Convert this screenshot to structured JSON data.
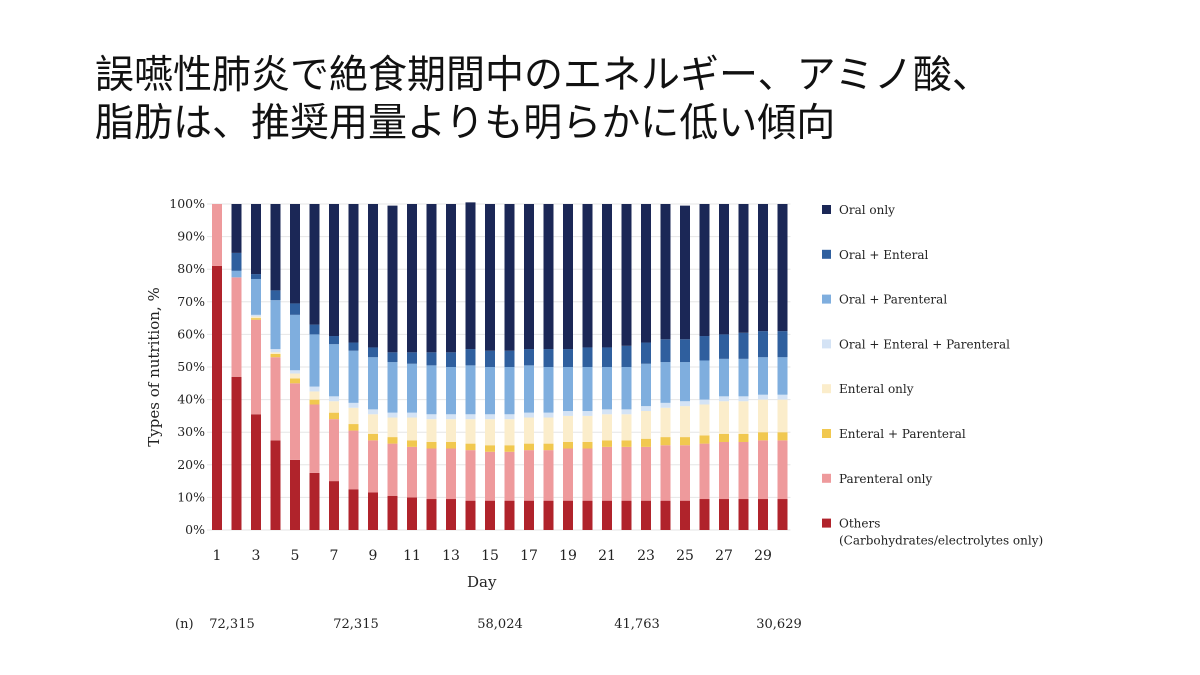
{
  "slide": {
    "title_line1": "誤嚥性肺炎で絶食期間中のエネルギー、アミノ酸、",
    "title_line2": "脂肪は、推奨用量よりも明らかに低い傾向"
  },
  "chart_data": {
    "type": "stacked-bar-100",
    "xlabel": "Day",
    "ylabel": "Types of nutrition, %",
    "ylim": [
      0,
      100
    ],
    "y_ticks": [
      "0%",
      "10%",
      "20%",
      "30%",
      "40%",
      "50%",
      "60%",
      "70%",
      "80%",
      "90%",
      "100%"
    ],
    "x_tick_labels": [
      "1",
      "3",
      "5",
      "7",
      "9",
      "11",
      "13",
      "15",
      "17",
      "19",
      "21",
      "23",
      "25",
      "27",
      "29"
    ],
    "days": [
      1,
      2,
      3,
      4,
      5,
      6,
      7,
      8,
      9,
      10,
      11,
      12,
      13,
      14,
      15,
      16,
      17,
      18,
      19,
      20,
      21,
      22,
      23,
      24,
      25,
      26,
      27,
      28,
      29,
      30
    ],
    "legend_position": "right",
    "series": [
      {
        "name": "Others",
        "name_line2": "(Carbohydrates/electrolytes only)",
        "color": "#b0232b",
        "values": [
          81,
          47,
          35.5,
          27.5,
          21.5,
          17.5,
          15,
          12.5,
          11.5,
          10.5,
          10,
          9.5,
          9.5,
          9,
          9,
          9,
          9,
          9,
          9,
          9,
          9,
          9,
          9,
          9,
          9,
          9.5,
          9.5,
          9.5,
          9.5,
          9.5
        ]
      },
      {
        "name": "Parenteral only",
        "color": "#ee9a9c",
        "values": [
          19,
          30.5,
          29,
          25.5,
          23.5,
          21,
          19,
          18,
          16,
          16,
          15.5,
          15.5,
          15.5,
          15.5,
          15,
          15,
          15.5,
          15.5,
          16,
          16,
          16.5,
          16.5,
          16.5,
          17,
          17,
          17,
          17.5,
          17.5,
          18,
          18
        ]
      },
      {
        "name": "Enteral + Parenteral",
        "color": "#f1c84f",
        "values": [
          0,
          0,
          0.5,
          1,
          1.5,
          1.5,
          2,
          2,
          2,
          2,
          2,
          2,
          2,
          2,
          2,
          2,
          2,
          2,
          2,
          2,
          2,
          2,
          2.5,
          2.5,
          2.5,
          2.5,
          2.5,
          2.5,
          2.5,
          2.5
        ]
      },
      {
        "name": "Enteral only",
        "color": "#fbedcb",
        "values": [
          0,
          0,
          0.5,
          0.5,
          1.5,
          2.5,
          3.5,
          5,
          6,
          6,
          7,
          7,
          7,
          7.5,
          8,
          8,
          8,
          8,
          8,
          8,
          8,
          8,
          8.5,
          9,
          9.5,
          9.5,
          10,
          10,
          10,
          10
        ]
      },
      {
        "name": "Oral + Enteral + Parenteral",
        "color": "#d4e3f5",
        "values": [
          0,
          0,
          0.5,
          1,
          1,
          1.5,
          1.5,
          1.5,
          1.5,
          1.5,
          1.5,
          1.5,
          1.5,
          1.5,
          1.5,
          1.5,
          1.5,
          1.5,
          1.5,
          1.5,
          1.5,
          1.5,
          1.5,
          1.5,
          1.5,
          1.5,
          1.5,
          1.5,
          1.5,
          1.5
        ]
      },
      {
        "name": "Oral + Parenteral",
        "color": "#7faede",
        "values": [
          0,
          2,
          11,
          15,
          17,
          16,
          16,
          16,
          16,
          15.5,
          15,
          15,
          14.5,
          15,
          14.5,
          14.5,
          14.5,
          14,
          13.5,
          13.5,
          13,
          13,
          13,
          12.5,
          12,
          12,
          11.5,
          11.5,
          11.5,
          11.5
        ]
      },
      {
        "name": "Oral + Enteral",
        "color": "#2f5f9e",
        "values": [
          0,
          5.5,
          1.5,
          3,
          3.5,
          3,
          2.5,
          2.5,
          3,
          3,
          3.5,
          4,
          4.5,
          5,
          5,
          5,
          5,
          5.5,
          5.5,
          6,
          6,
          6.5,
          6.5,
          7,
          7,
          7.5,
          7.5,
          8,
          8,
          8
        ]
      },
      {
        "name": "Oral only",
        "color": "#1b2756",
        "values": [
          0,
          15,
          21.5,
          26.5,
          30.5,
          37,
          40.5,
          42.5,
          44,
          45,
          45.5,
          45.5,
          45.5,
          45,
          45,
          45,
          44.5,
          44.5,
          44.5,
          44,
          44,
          43.5,
          42.5,
          41.5,
          41,
          40.5,
          40,
          39.5,
          39,
          39
        ]
      }
    ],
    "n_label": "(n)",
    "n_values": [
      "72,315",
      "72,315",
      "58,024",
      "41,763",
      "30,629"
    ]
  }
}
